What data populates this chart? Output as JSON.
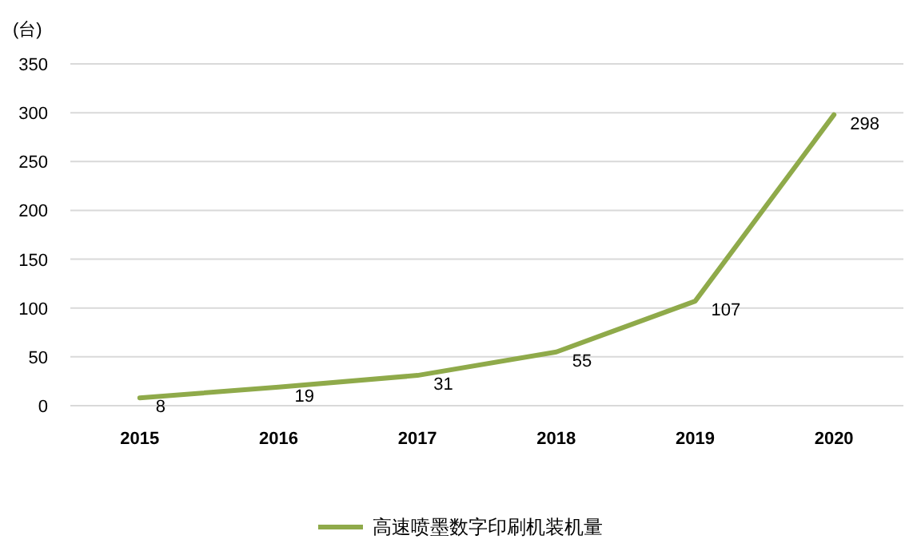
{
  "chart_data": {
    "type": "line",
    "ylabel": "(台)",
    "categories": [
      "2015",
      "2016",
      "2017",
      "2018",
      "2019",
      "2020"
    ],
    "series": [
      {
        "name": "高速喷墨数字印刷机装机量",
        "color": "#8faa4a",
        "values": [
          8,
          19,
          31,
          55,
          107,
          298
        ]
      }
    ],
    "ylim": [
      0,
      350
    ],
    "yticks": [
      0,
      50,
      100,
      150,
      200,
      250,
      300,
      350
    ],
    "grid": "y",
    "legend": "bottom",
    "data_labels": true,
    "marker": "none",
    "line_style": "solid"
  }
}
